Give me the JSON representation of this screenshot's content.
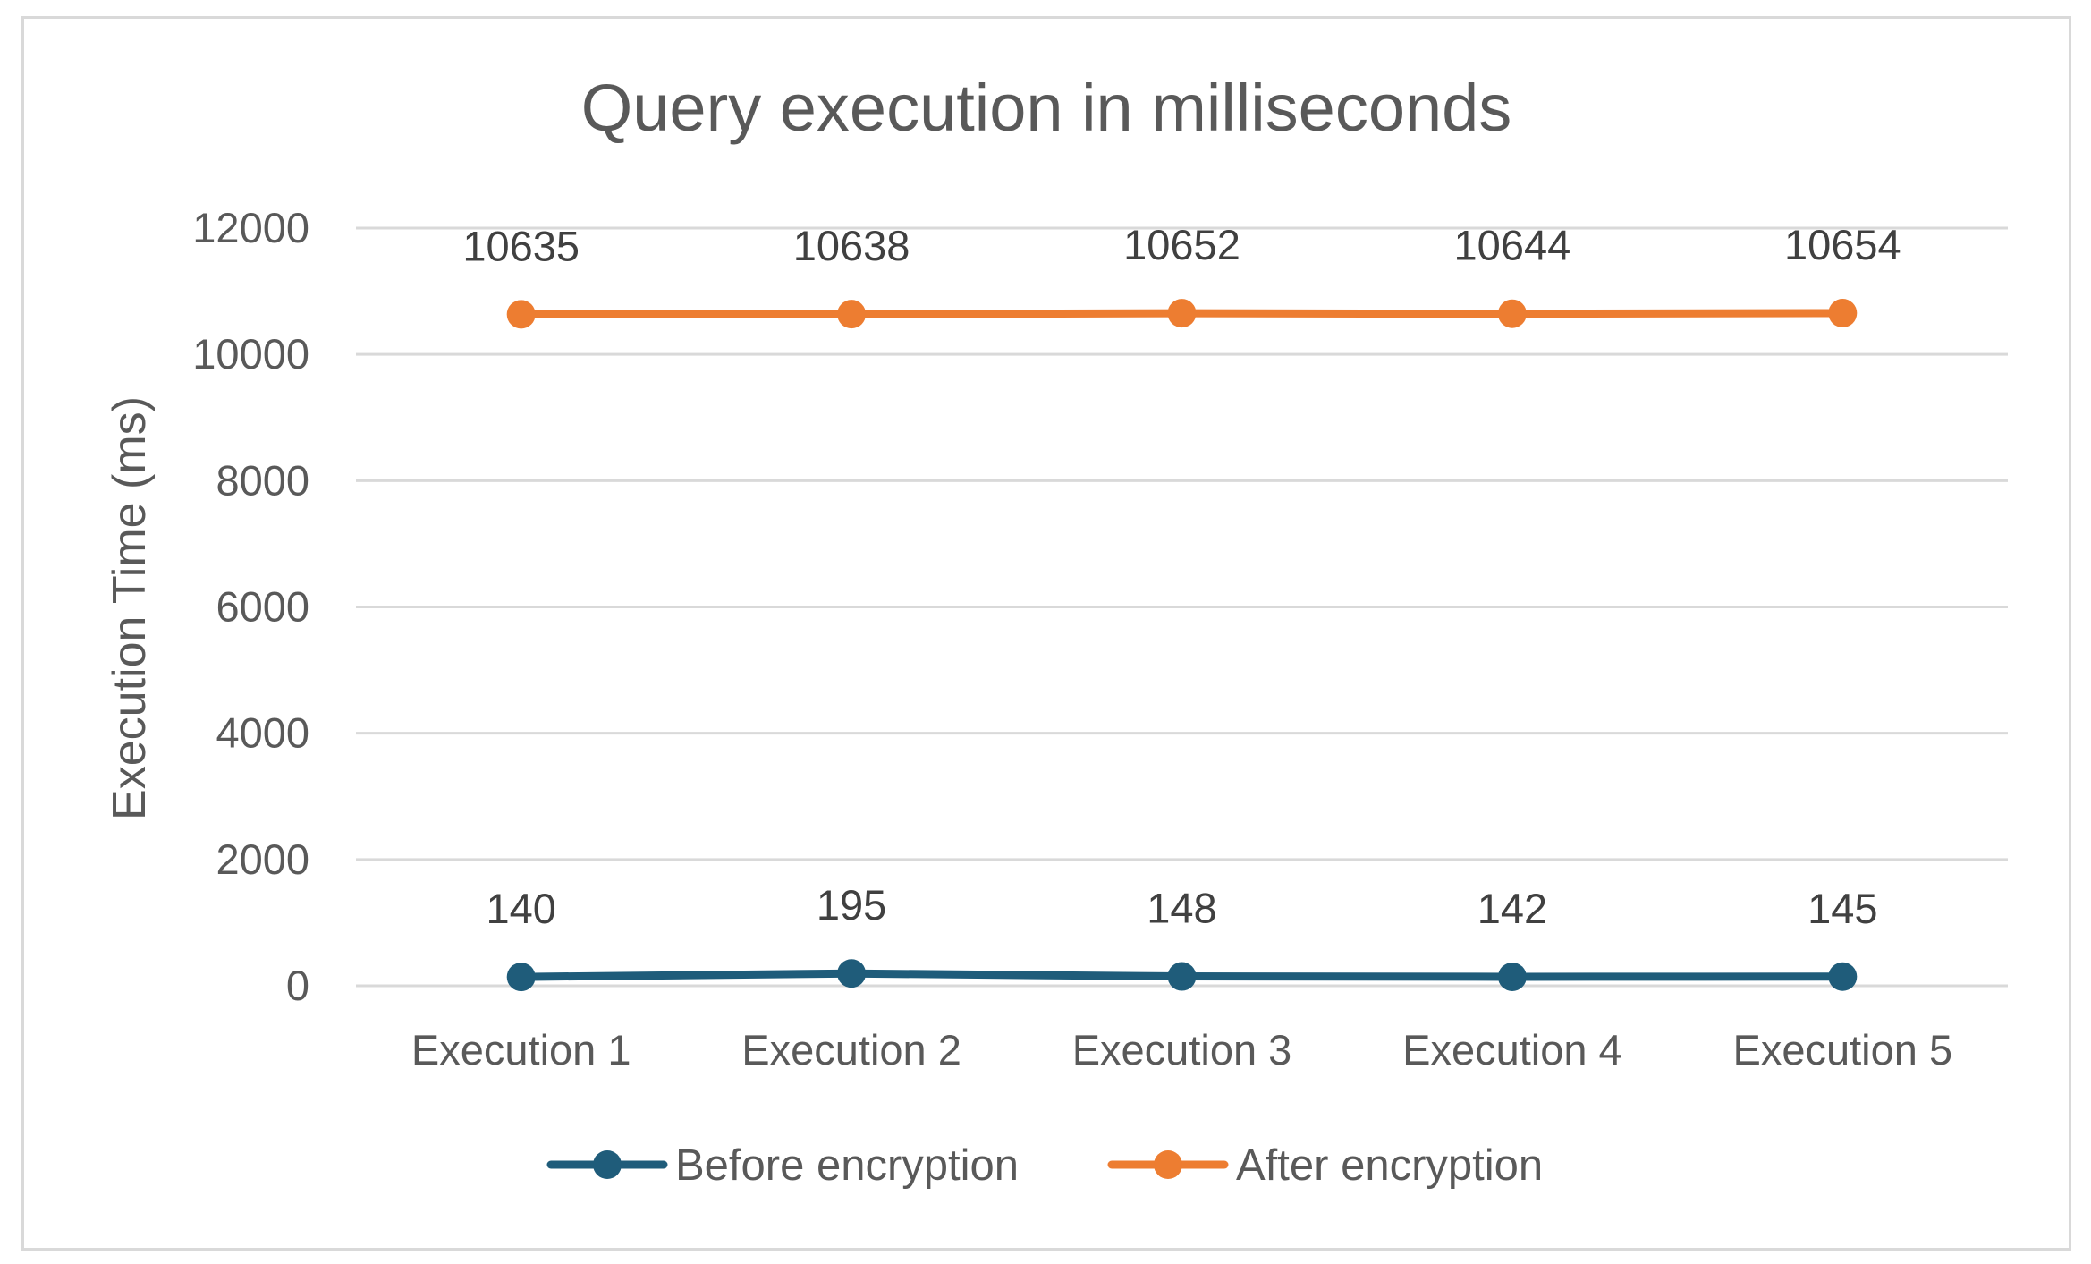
{
  "chart_data": {
    "type": "line",
    "title": "Query execution in milliseconds",
    "xlabel": "",
    "ylabel": "Execution Time (ms)",
    "categories": [
      "Execution 1",
      "Execution 2",
      "Execution 3",
      "Execution 4",
      "Execution 5"
    ],
    "ylim": [
      0,
      12000
    ],
    "yticks": [
      0,
      2000,
      4000,
      6000,
      8000,
      10000,
      12000
    ],
    "grid": true,
    "legend_position": "bottom",
    "series": [
      {
        "name": "Before encryption",
        "color": "#1f5c7a",
        "values": [
          140,
          195,
          148,
          142,
          145
        ],
        "labels": [
          "140",
          "195",
          "148",
          "142",
          "145"
        ]
      },
      {
        "name": "After encryption",
        "color": "#ed7d31",
        "values": [
          10635,
          10638,
          10652,
          10644,
          10654
        ],
        "labels": [
          "10635",
          "10638",
          "10652",
          "10644",
          "10654"
        ]
      }
    ]
  }
}
